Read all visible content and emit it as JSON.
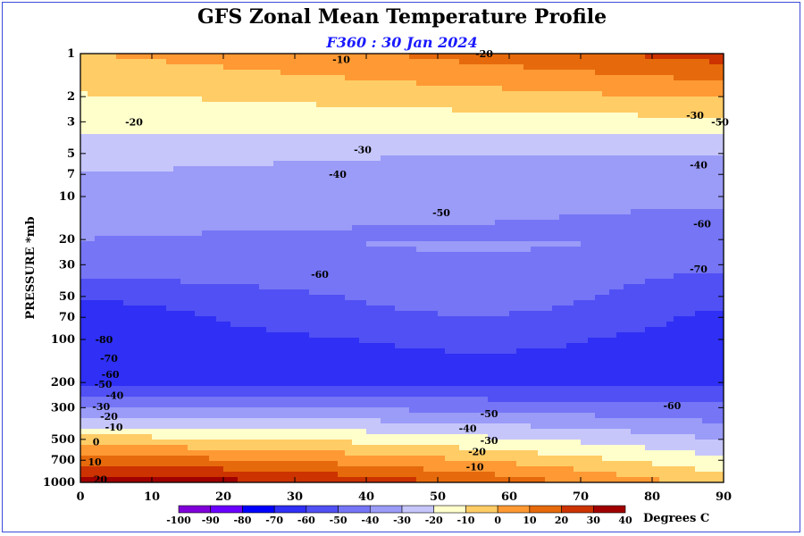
{
  "chart_data": {
    "type": "heatmap",
    "title": "GFS Zonal Mean Temperature Profile",
    "subtitle": "F360 : 30 Jan 2024",
    "ylabel": "PRESSURE *mb",
    "xlabel": "",
    "x_ticks": [
      0,
      10,
      20,
      30,
      40,
      50,
      60,
      70,
      80,
      90
    ],
    "xlim": [
      0,
      90
    ],
    "y_ticks": [
      "1",
      "2",
      "3",
      "5",
      "7",
      "10",
      "20",
      "30",
      "50",
      "70",
      "100",
      "200",
      "300",
      "500",
      "700",
      "1000"
    ],
    "ylim": [
      1000,
      1
    ],
    "y_scale": "log",
    "colorbar": {
      "ticks": [
        "-100",
        "-90",
        "-80",
        "-70",
        "-60",
        "-50",
        "-40",
        "-30",
        "-20",
        "-10",
        "0",
        "10",
        "20",
        "30",
        "40"
      ],
      "colors": [
        "#7f00d8",
        "#6a00ff",
        "#0000ff",
        "#2f2ff5",
        "#5050f4",
        "#7575f6",
        "#9b9bf8",
        "#c6c6fb",
        "#ffffcc",
        "#ffcc66",
        "#ff9933",
        "#e66a0b",
        "#cc3300",
        "#a00000",
        "#8b0000",
        "#a08030"
      ],
      "unit_label": "Degrees C"
    },
    "contour_labels": [
      {
        "text": "-10",
        "x": 36.5,
        "p": 1.1
      },
      {
        "text": "-20",
        "x": 56.5,
        "p": 1.0
      },
      {
        "text": "-20",
        "x": 7.5,
        "p": 3.0
      },
      {
        "text": "-30",
        "x": 39.5,
        "p": 4.7
      },
      {
        "text": "-30",
        "x": 86.0,
        "p": 2.7
      },
      {
        "text": "-50",
        "x": 89.5,
        "p": 3.0
      },
      {
        "text": "-40",
        "x": 36.0,
        "p": 7.0
      },
      {
        "text": "-40",
        "x": 86.5,
        "p": 6.0
      },
      {
        "text": "-50",
        "x": 50.5,
        "p": 13.0
      },
      {
        "text": "-60",
        "x": 87.0,
        "p": 15.5
      },
      {
        "text": "-60",
        "x": 33.5,
        "p": 35.0
      },
      {
        "text": "-70",
        "x": 86.5,
        "p": 32.0
      },
      {
        "text": "-80",
        "x": 3.3,
        "p": 100
      },
      {
        "text": "-70",
        "x": 4.0,
        "p": 135
      },
      {
        "text": "-60",
        "x": 4.2,
        "p": 175
      },
      {
        "text": "-50",
        "x": 3.2,
        "p": 205
      },
      {
        "text": "-40",
        "x": 4.8,
        "p": 245
      },
      {
        "text": "-30",
        "x": 2.9,
        "p": 295
      },
      {
        "text": "-20",
        "x": 4.0,
        "p": 345
      },
      {
        "text": "-10",
        "x": 4.7,
        "p": 410
      },
      {
        "text": "0",
        "x": 2.2,
        "p": 520
      },
      {
        "text": "10",
        "x": 2.0,
        "p": 720
      },
      {
        "text": "20",
        "x": 2.8,
        "p": 950
      },
      {
        "text": "-50",
        "x": 57.2,
        "p": 330
      },
      {
        "text": "-40",
        "x": 54.2,
        "p": 420
      },
      {
        "text": "-30",
        "x": 57.2,
        "p": 510
      },
      {
        "text": "-20",
        "x": 55.5,
        "p": 610
      },
      {
        "text": "-10",
        "x": 55.2,
        "p": 780
      },
      {
        "text": "-60",
        "x": 82.8,
        "p": 290
      }
    ]
  }
}
